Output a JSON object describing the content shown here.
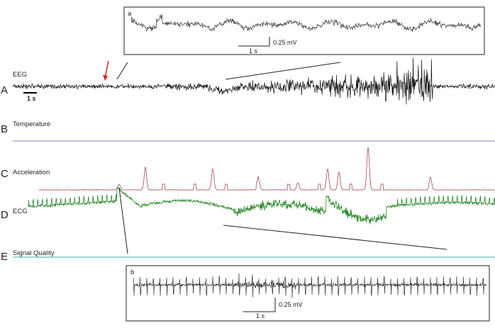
{
  "inset_a": {
    "letter": "a",
    "time_scale": "1 s",
    "amplitude_scale": "0.25 mV"
  },
  "rows": [
    {
      "letter": "A",
      "label": "EEG",
      "scale": "1 s"
    },
    {
      "letter": "B",
      "label": "Temperature"
    },
    {
      "letter": "C",
      "label": "Acceleration"
    },
    {
      "letter": "D",
      "label": "ECG"
    },
    {
      "letter": "E",
      "label": "Signal Quality"
    }
  ],
  "inset_b": {
    "letter": "b",
    "time_scale": "1 s",
    "amplitude_scale": "0.25 mV"
  }
}
